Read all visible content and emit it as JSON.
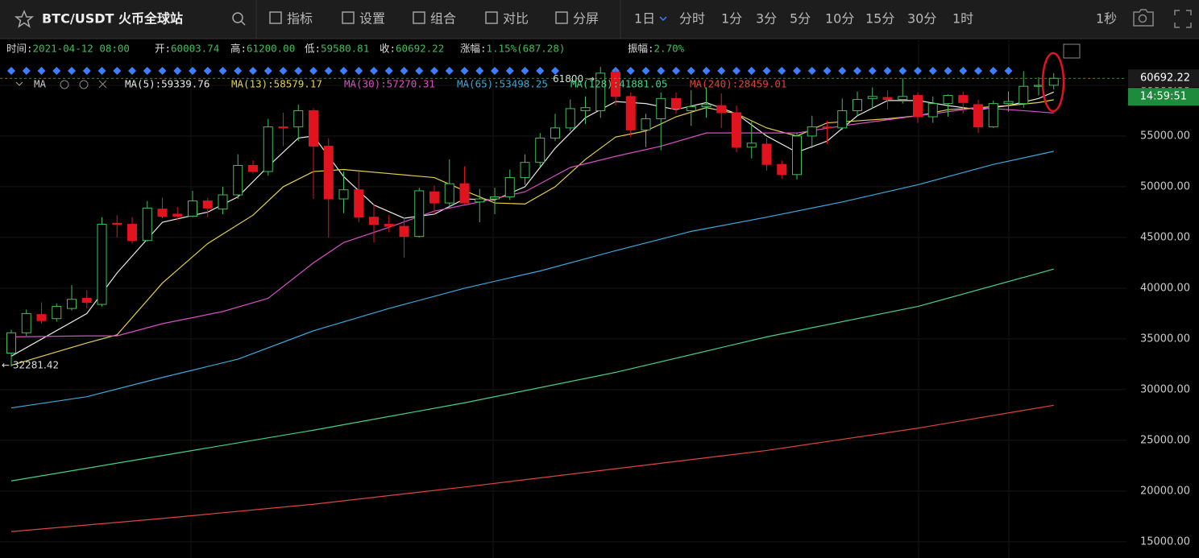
{
  "toolbar": {
    "title": "BTC/USDT  火币全球站",
    "menu": [
      "指标",
      "设置",
      "组合",
      "对比",
      "分屏"
    ],
    "intervals": [
      "1日",
      "分时",
      "1分",
      "3分",
      "5分",
      "10分",
      "15分",
      "30分",
      "1时"
    ],
    "active_interval": 0,
    "extra": "1秒"
  },
  "info_bar": [
    {
      "label": "时间:",
      "value": "2021-04-12 08:00"
    },
    {
      "label": "开:",
      "value": "60003.74"
    },
    {
      "label": "高:",
      "value": "61200.00"
    },
    {
      "label": "低:",
      "value": "59580.81"
    },
    {
      "label": "收:",
      "value": "60692.22"
    },
    {
      "label": "涨幅:",
      "value": "1.15%(687.28)"
    },
    {
      "label": "振幅:",
      "value": "2.70%"
    }
  ],
  "chart_data": {
    "type": "candlestick",
    "indicator": "MA",
    "ylim": [
      13400,
      64600
    ],
    "yticks": [
      {
        "value": 15000,
        "label": "15000.00"
      },
      {
        "value": 20000,
        "label": "20000.00"
      },
      {
        "value": 25000,
        "label": "25000.00"
      },
      {
        "value": 30000,
        "label": "30000.00"
      },
      {
        "value": 35000,
        "label": "35000.00"
      },
      {
        "value": 40000,
        "label": "40000.00"
      },
      {
        "value": 45000,
        "label": "45000.00"
      },
      {
        "value": 50000,
        "label": "50000.00"
      },
      {
        "value": 55000,
        "label": "55000.00"
      },
      {
        "value": 60000,
        "label": "60000.00"
      }
    ],
    "up_color": "#3fbf5a",
    "down_color": "#e0141e",
    "candles": [
      {
        "open": 33600,
        "high": 35900,
        "low": 32281.42,
        "close": 35600
      },
      {
        "open": 35600,
        "high": 37900,
        "low": 35300,
        "close": 37500
      },
      {
        "open": 37400,
        "high": 38600,
        "low": 36500,
        "close": 36800
      },
      {
        "open": 37000,
        "high": 38500,
        "low": 36700,
        "close": 38200
      },
      {
        "open": 38000,
        "high": 40300,
        "low": 37800,
        "close": 38900
      },
      {
        "open": 39000,
        "high": 39800,
        "low": 38000,
        "close": 38600
      },
      {
        "open": 38400,
        "high": 47000,
        "low": 38200,
        "close": 46300
      },
      {
        "open": 46400,
        "high": 47200,
        "low": 45000,
        "close": 46300
      },
      {
        "open": 46300,
        "high": 47000,
        "low": 44400,
        "close": 44700
      },
      {
        "open": 44700,
        "high": 48600,
        "low": 44600,
        "close": 47900
      },
      {
        "open": 47800,
        "high": 48900,
        "low": 46900,
        "close": 47100
      },
      {
        "open": 47300,
        "high": 48000,
        "low": 46700,
        "close": 47100
      },
      {
        "open": 47100,
        "high": 49600,
        "low": 47000,
        "close": 48600
      },
      {
        "open": 48600,
        "high": 48900,
        "low": 47000,
        "close": 47900
      },
      {
        "open": 47800,
        "high": 50000,
        "low": 47300,
        "close": 49200
      },
      {
        "open": 49200,
        "high": 53200,
        "low": 48800,
        "close": 52100
      },
      {
        "open": 52100,
        "high": 52600,
        "low": 51300,
        "close": 51500
      },
      {
        "open": 51500,
        "high": 56700,
        "low": 51100,
        "close": 55900
      },
      {
        "open": 55900,
        "high": 57300,
        "low": 54000,
        "close": 55800
      },
      {
        "open": 55900,
        "high": 58100,
        "low": 54500,
        "close": 57500
      },
      {
        "open": 57500,
        "high": 57700,
        "low": 48800,
        "close": 54000
      },
      {
        "open": 54000,
        "high": 54800,
        "low": 45000,
        "close": 48800
      },
      {
        "open": 48800,
        "high": 51500,
        "low": 47400,
        "close": 49700
      },
      {
        "open": 49700,
        "high": 51500,
        "low": 46500,
        "close": 47000
      },
      {
        "open": 47000,
        "high": 48300,
        "low": 44500,
        "close": 46300
      },
      {
        "open": 46300,
        "high": 47200,
        "low": 45500,
        "close": 46100
      },
      {
        "open": 46100,
        "high": 47000,
        "low": 43000,
        "close": 45100
      },
      {
        "open": 45100,
        "high": 49900,
        "low": 45000,
        "close": 49600
      },
      {
        "open": 49500,
        "high": 50100,
        "low": 47300,
        "close": 48400
      },
      {
        "open": 48400,
        "high": 52700,
        "low": 47900,
        "close": 50300
      },
      {
        "open": 50300,
        "high": 52000,
        "low": 48300,
        "close": 48400
      },
      {
        "open": 48500,
        "high": 49800,
        "low": 46500,
        "close": 48800
      },
      {
        "open": 48800,
        "high": 49900,
        "low": 47300,
        "close": 49000
      },
      {
        "open": 49000,
        "high": 51700,
        "low": 48700,
        "close": 50900
      },
      {
        "open": 50900,
        "high": 53200,
        "low": 50200,
        "close": 52400
      },
      {
        "open": 52400,
        "high": 55300,
        "low": 52000,
        "close": 54800
      },
      {
        "open": 54800,
        "high": 57200,
        "low": 54500,
        "close": 55800
      },
      {
        "open": 55800,
        "high": 58600,
        "low": 55500,
        "close": 57700
      },
      {
        "open": 57500,
        "high": 58900,
        "low": 56200,
        "close": 57800
      },
      {
        "open": 57500,
        "high": 61800,
        "low": 56800,
        "close": 61200
      },
      {
        "open": 61300,
        "high": 61500,
        "low": 58000,
        "close": 58900
      },
      {
        "open": 58900,
        "high": 59300,
        "low": 54900,
        "close": 55600
      },
      {
        "open": 55600,
        "high": 57200,
        "low": 53900,
        "close": 56700
      },
      {
        "open": 56700,
        "high": 59300,
        "low": 53600,
        "close": 58700
      },
      {
        "open": 58700,
        "high": 59300,
        "low": 57200,
        "close": 57700
      },
      {
        "open": 57500,
        "high": 59500,
        "low": 56000,
        "close": 57900
      },
      {
        "open": 57900,
        "high": 59800,
        "low": 56800,
        "close": 58100
      },
      {
        "open": 58000,
        "high": 59200,
        "low": 55800,
        "close": 57300
      },
      {
        "open": 57300,
        "high": 58000,
        "low": 53400,
        "close": 53900
      },
      {
        "open": 53900,
        "high": 56500,
        "low": 52800,
        "close": 54300
      },
      {
        "open": 54200,
        "high": 54800,
        "low": 51600,
        "close": 52200
      },
      {
        "open": 52200,
        "high": 52600,
        "low": 50800,
        "close": 51200
      },
      {
        "open": 51200,
        "high": 55300,
        "low": 50700,
        "close": 55000
      },
      {
        "open": 55000,
        "high": 57000,
        "low": 53800,
        "close": 55900
      },
      {
        "open": 55900,
        "high": 56500,
        "low": 54200,
        "close": 55800
      },
      {
        "open": 55800,
        "high": 58700,
        "low": 55600,
        "close": 57500
      },
      {
        "open": 57500,
        "high": 59400,
        "low": 57000,
        "close": 58600
      },
      {
        "open": 58700,
        "high": 59800,
        "low": 57700,
        "close": 58900
      },
      {
        "open": 58800,
        "high": 59500,
        "low": 57600,
        "close": 58600
      },
      {
        "open": 58600,
        "high": 60700,
        "low": 58200,
        "close": 58900
      },
      {
        "open": 59000,
        "high": 59300,
        "low": 56300,
        "close": 56900
      },
      {
        "open": 56900,
        "high": 58900,
        "low": 56300,
        "close": 58200
      },
      {
        "open": 58200,
        "high": 59100,
        "low": 56900,
        "close": 59000
      },
      {
        "open": 59000,
        "high": 59400,
        "low": 57200,
        "close": 58300
      },
      {
        "open": 58100,
        "high": 58600,
        "low": 55300,
        "close": 55900
      },
      {
        "open": 55900,
        "high": 58500,
        "low": 55800,
        "close": 58200
      },
      {
        "open": 58200,
        "high": 59400,
        "low": 57400,
        "close": 58400
      },
      {
        "open": 58200,
        "high": 61400,
        "low": 57800,
        "close": 59900
      },
      {
        "open": 59900,
        "high": 60800,
        "low": 59000,
        "close": 60000
      },
      {
        "open": 60003.74,
        "high": 61200,
        "low": 59580.81,
        "close": 60692.22
      }
    ],
    "series": [
      {
        "name": "MA(5):59339.76",
        "color": "#e8e8e8",
        "x": [
          0,
          5,
          7,
          10,
          13,
          15,
          17,
          19,
          20,
          22,
          24,
          26,
          28,
          30,
          32,
          34,
          36,
          38,
          40,
          42,
          44,
          46,
          48,
          50,
          52,
          54,
          56,
          58,
          60,
          62,
          64,
          66,
          68,
          69
        ],
        "values": [
          33300,
          37500,
          41500,
          46500,
          47500,
          49000,
          52000,
          54800,
          55000,
          51000,
          48200,
          46900,
          47300,
          48800,
          48700,
          50000,
          53800,
          56800,
          58400,
          58200,
          57600,
          58300,
          57200,
          55000,
          53400,
          54500,
          57000,
          58500,
          58500,
          58000,
          57600,
          58000,
          58700,
          59339.76
        ]
      },
      {
        "name": "MA(13):58579.17",
        "color": "#e6d14a",
        "x": [
          0,
          5,
          7,
          10,
          13,
          16,
          18,
          20,
          22,
          25,
          28,
          30,
          32,
          34,
          36,
          38,
          40,
          42,
          44,
          46,
          48,
          50,
          52,
          54,
          56,
          58,
          60,
          62,
          64,
          66,
          68,
          69
        ],
        "values": [
          32400,
          34600,
          35400,
          40500,
          44400,
          47200,
          50000,
          51500,
          51700,
          51300,
          50900,
          49600,
          48400,
          48300,
          50000,
          52700,
          54900,
          55500,
          56900,
          57800,
          57200,
          55800,
          55000,
          56300,
          56500,
          56700,
          57000,
          57600,
          57800,
          58000,
          58300,
          58579.17
        ]
      },
      {
        "name": "MA(30):57270.31",
        "color": "#d94fc8",
        "x": [
          0,
          5,
          7,
          10,
          14,
          17,
          20,
          22,
          25,
          28,
          31,
          34,
          37,
          40,
          43,
          46,
          49,
          52,
          55,
          58,
          61,
          64,
          67,
          69
        ],
        "values": [
          35200,
          35300,
          35300,
          36500,
          37700,
          39000,
          42500,
          44500,
          46000,
          47600,
          48500,
          49500,
          51900,
          53000,
          54000,
          55300,
          55300,
          55300,
          56000,
          56600,
          57200,
          57800,
          57500,
          57270.31
        ]
      },
      {
        "name": "MA(65):53498.25",
        "color": "#3aa9de",
        "x": [
          0,
          5,
          10,
          15,
          20,
          25,
          30,
          35,
          40,
          45,
          50,
          55,
          60,
          65,
          69
        ],
        "values": [
          28200,
          29300,
          31200,
          33000,
          35800,
          38000,
          40000,
          41700,
          43700,
          45600,
          47000,
          48500,
          50200,
          52200,
          53498.25
        ]
      },
      {
        "name": "MA(128):41881.05",
        "color": "#44d28a",
        "x": [
          0,
          10,
          20,
          30,
          40,
          50,
          60,
          69
        ],
        "values": [
          21000,
          23500,
          26000,
          28700,
          31700,
          35200,
          38200,
          41881.05
        ]
      },
      {
        "name": "MA(240):28459.01",
        "color": "#e0443e",
        "x": [
          0,
          10,
          20,
          30,
          40,
          50,
          60,
          69
        ],
        "values": [
          16000,
          17300,
          18700,
          20400,
          22200,
          24000,
          26200,
          28459.01
        ]
      }
    ],
    "annotations": [
      {
        "text": "61800 →",
        "value": 61800
      },
      {
        "text": "← 32281.42",
        "value": 32281.42
      }
    ],
    "last_price": 60692.22,
    "countdown": "14:59:51"
  }
}
